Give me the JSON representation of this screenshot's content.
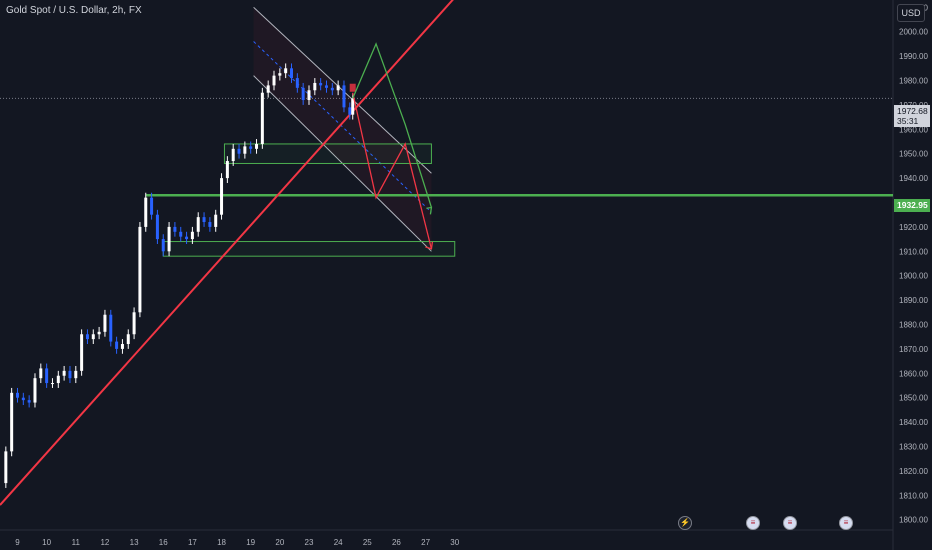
{
  "header": {
    "title": "Gold Spot / U.S. Dollar, 2h, FX",
    "currency": "USD"
  },
  "price_scale": {
    "current_price": "1972.68",
    "countdown": "35:31",
    "level_label": "1932.95"
  },
  "colors": {
    "background": "#131722",
    "bull": "#ffffff",
    "bear": "#2962ff",
    "trendline": "#f23645",
    "support": "#4caf50",
    "projection_up": "#4caf50",
    "projection_down": "#f23645",
    "channel": "#b2b5be"
  },
  "events": {
    "lightning": "lightning-icon",
    "flags": [
      "us-flag-icon",
      "us-flag-icon",
      "us-flag-icon"
    ]
  },
  "chart_data": {
    "type": "candlestick",
    "title": "Gold Spot / U.S. Dollar, 2h, FX",
    "ylim": [
      1797,
      2013
    ],
    "y_ticks": [
      1800,
      1810,
      1820,
      1830,
      1840,
      1850,
      1860,
      1870,
      1880,
      1890,
      1900,
      1910,
      1920,
      1930,
      1940,
      1950,
      1960,
      1970,
      1980,
      1990,
      2000,
      2010
    ],
    "x_ticks": [
      "9",
      "10",
      "11",
      "12",
      "13",
      "16",
      "17",
      "18",
      "19",
      "20",
      "23",
      "24",
      "25",
      "26",
      "27",
      "30"
    ],
    "x_range": [
      0,
      30.6
    ],
    "x_tick_positions": [
      0.6,
      1.6,
      2.6,
      3.6,
      4.6,
      5.6,
      6.6,
      7.6,
      8.6,
      9.6,
      10.6,
      11.6,
      12.6,
      13.6,
      14.6,
      15.6
    ],
    "current_price": 1972.68,
    "key_level": 1932.95,
    "close_points": [
      [
        0.0,
        1815
      ],
      [
        0.2,
        1828
      ],
      [
        0.4,
        1852
      ],
      [
        0.6,
        1850
      ],
      [
        0.8,
        1849
      ],
      [
        1.0,
        1848
      ],
      [
        1.2,
        1858
      ],
      [
        1.4,
        1862
      ],
      [
        1.6,
        1856
      ],
      [
        1.8,
        1856
      ],
      [
        2.0,
        1859
      ],
      [
        2.2,
        1861
      ],
      [
        2.4,
        1858
      ],
      [
        2.6,
        1861
      ],
      [
        2.8,
        1876
      ],
      [
        3.0,
        1874
      ],
      [
        3.2,
        1876
      ],
      [
        3.4,
        1877
      ],
      [
        3.6,
        1884
      ],
      [
        3.8,
        1873
      ],
      [
        4.0,
        1870
      ],
      [
        4.2,
        1872
      ],
      [
        4.4,
        1876
      ],
      [
        4.6,
        1885
      ],
      [
        4.8,
        1920
      ],
      [
        5.0,
        1932
      ],
      [
        5.2,
        1925
      ],
      [
        5.4,
        1915
      ],
      [
        5.6,
        1910
      ],
      [
        5.8,
        1920
      ],
      [
        6.0,
        1918
      ],
      [
        6.2,
        1916
      ],
      [
        6.4,
        1915
      ],
      [
        6.6,
        1918
      ],
      [
        6.8,
        1924
      ],
      [
        7.0,
        1922
      ],
      [
        7.2,
        1920
      ],
      [
        7.4,
        1925
      ],
      [
        7.6,
        1940
      ],
      [
        7.8,
        1947
      ],
      [
        8.0,
        1952
      ],
      [
        8.2,
        1950
      ],
      [
        8.4,
        1953
      ],
      [
        8.6,
        1952
      ],
      [
        8.8,
        1954
      ],
      [
        9.0,
        1975
      ],
      [
        9.2,
        1978
      ],
      [
        9.4,
        1982
      ],
      [
        9.6,
        1983
      ],
      [
        9.8,
        1985
      ],
      [
        10.0,
        1981
      ],
      [
        10.2,
        1977
      ],
      [
        10.4,
        1972
      ],
      [
        10.6,
        1976
      ],
      [
        10.8,
        1979
      ],
      [
        11.0,
        1978
      ],
      [
        11.2,
        1977
      ],
      [
        11.4,
        1976
      ],
      [
        11.6,
        1978
      ],
      [
        11.8,
        1969
      ],
      [
        12.0,
        1966
      ],
      [
        12.1,
        1972.68
      ]
    ],
    "annotations": {
      "rising_trendline": [
        [
          0.0,
          1806
        ],
        [
          15.6,
          2014
        ]
      ],
      "channel_upper": [
        [
          8.7,
          2010
        ],
        [
          14.8,
          1942
        ]
      ],
      "channel_lower": [
        [
          8.7,
          1982
        ],
        [
          14.8,
          1910
        ]
      ],
      "channel_mid": [
        [
          8.7,
          1996
        ],
        [
          14.8,
          1926
        ]
      ],
      "support_band_upper": [
        [
          7.7,
          1954
        ],
        [
          14.8,
          1946
        ]
      ],
      "support_band_lower": [
        [
          5.6,
          1914
        ],
        [
          15.6,
          1908
        ]
      ],
      "projection_down": [
        [
          12.1,
          1975
        ],
        [
          12.9,
          1932
        ],
        [
          13.9,
          1954
        ],
        [
          14.8,
          1911
        ]
      ],
      "projection_up": [
        [
          12.1,
          1972.68
        ],
        [
          12.9,
          1995
        ],
        [
          13.9,
          1962
        ],
        [
          14.8,
          1928
        ]
      ]
    }
  }
}
